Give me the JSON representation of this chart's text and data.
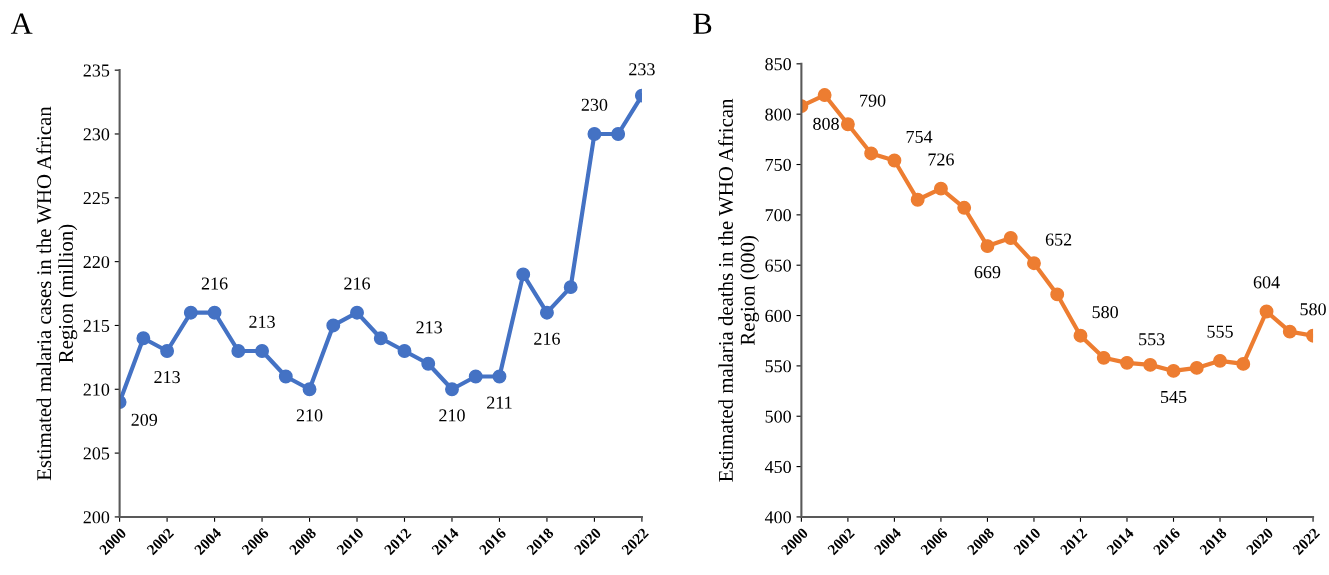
{
  "chart_data": [
    {
      "type": "line",
      "title": "A",
      "ylabel": "Estimated malaria cases in the WHO African\nRegion (million)",
      "x": [
        2000,
        2001,
        2002,
        2003,
        2004,
        2005,
        2006,
        2007,
        2008,
        2009,
        2010,
        2011,
        2012,
        2013,
        2014,
        2015,
        2016,
        2017,
        2018,
        2019,
        2020,
        2021,
        2022
      ],
      "series": [
        {
          "color": "#4472c4",
          "values": [
            209,
            214,
            213,
            216,
            216,
            213,
            213,
            211,
            210,
            215,
            216,
            214,
            213,
            212,
            210,
            211,
            211,
            219,
            216,
            218,
            230,
            230,
            233
          ],
          "value_labels": [
            "209",
            null,
            "213",
            null,
            "216",
            null,
            "213",
            null,
            "210",
            null,
            "216",
            null,
            "213",
            null,
            "210",
            null,
            "211",
            null,
            "216",
            null,
            "230",
            null,
            "233"
          ]
        }
      ],
      "xlim": [
        2000,
        2022
      ],
      "xticks": [
        2000,
        2002,
        2004,
        2006,
        2008,
        2010,
        2012,
        2014,
        2016,
        2018,
        2020,
        2022
      ],
      "ylim": [
        200,
        235
      ],
      "yticks": [
        200,
        205,
        210,
        215,
        220,
        225,
        230,
        235
      ],
      "marker": "circle",
      "line_style": "solid",
      "grid": false
    },
    {
      "type": "line",
      "title": "B",
      "ylabel": "Estimated malaria deaths in the WHO African\nRegion (000)",
      "x": [
        2000,
        2001,
        2002,
        2003,
        2004,
        2005,
        2006,
        2007,
        2008,
        2009,
        2010,
        2011,
        2012,
        2013,
        2014,
        2015,
        2016,
        2017,
        2018,
        2019,
        2020,
        2021,
        2022
      ],
      "series": [
        {
          "color": "#ed7d31",
          "values": [
            808,
            819,
            790,
            761,
            754,
            715,
            726,
            707,
            669,
            677,
            652,
            621,
            580,
            558,
            553,
            551,
            545,
            548,
            555,
            552,
            604,
            584,
            580
          ],
          "value_labels": [
            "808",
            null,
            "790",
            null,
            "754",
            null,
            "726",
            null,
            "669",
            null,
            "652",
            null,
            "580",
            null,
            "553",
            null,
            "545",
            null,
            "555",
            null,
            "604",
            null,
            "580"
          ]
        }
      ],
      "xlim": [
        2000,
        2022
      ],
      "xticks": [
        2000,
        2002,
        2004,
        2006,
        2008,
        2010,
        2012,
        2014,
        2016,
        2018,
        2020,
        2022
      ],
      "ylim": [
        400,
        850
      ],
      "yticks": [
        400,
        450,
        500,
        550,
        600,
        650,
        700,
        750,
        800,
        850
      ],
      "marker": "circle",
      "line_style": "solid",
      "grid": false
    }
  ]
}
